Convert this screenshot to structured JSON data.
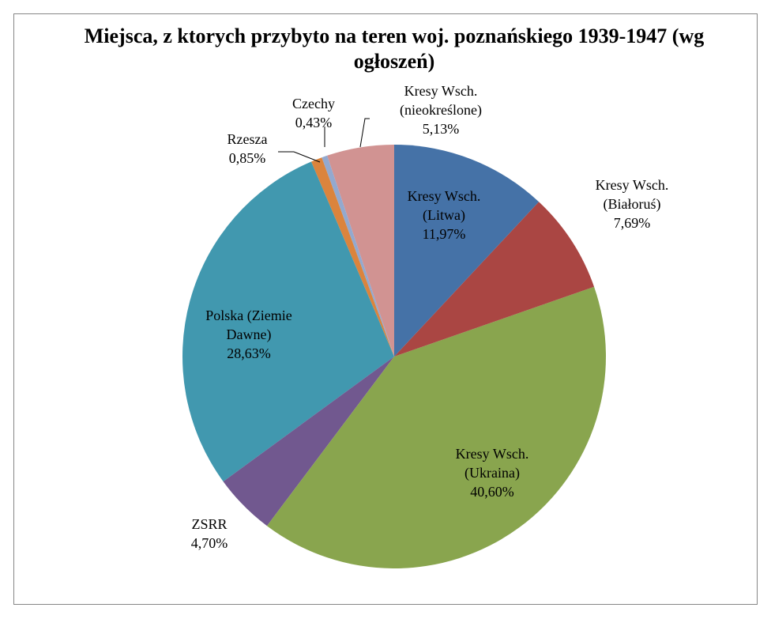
{
  "chart_data": {
    "type": "pie",
    "title": "Miejsca, z ktorych przybyto na teren woj. poznańskiego 1939-1947 (wg ogłoszeń)",
    "categories": [
      "Kresy Wsch. (Litwa)",
      "Kresy Wsch. (Białoruś)",
      "Kresy Wsch. (Ukraina)",
      "ZSRR",
      "Polska (Ziemie Dawne)",
      "Rzesza",
      "Czechy",
      "Kresy Wsch. (nieokreślone)"
    ],
    "values": [
      11.97,
      7.69,
      40.6,
      4.7,
      28.63,
      0.85,
      0.43,
      5.13
    ],
    "value_labels": [
      "11,97%",
      "7,69%",
      "40,60%",
      "4,70%",
      "28,63%",
      "0,85%",
      "0,43%",
      "5,13%"
    ],
    "colors": [
      "#4572A7",
      "#AA4643",
      "#89A54E",
      "#71588F",
      "#4198AF",
      "#DB843D",
      "#93A9CF",
      "#D19392"
    ]
  }
}
